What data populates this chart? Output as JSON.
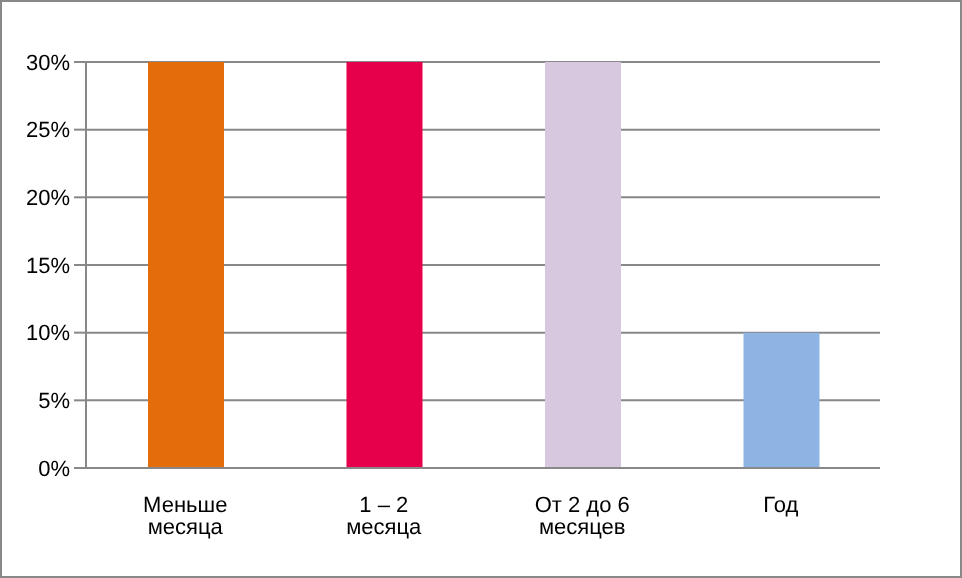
{
  "chart_data": {
    "type": "bar",
    "categories": [
      "Меньше месяца",
      "1 – 2 месяца",
      "От 2 до 6 месяцев",
      "Год"
    ],
    "values": [
      30,
      30,
      30,
      10
    ],
    "colors": [
      "#e46c0a",
      "#e6004c",
      "#d7c8df",
      "#8db4e2"
    ],
    "ylim": [
      0,
      30
    ],
    "yticks": [
      {
        "value": 0,
        "label": "0%"
      },
      {
        "value": 5,
        "label": "5%"
      },
      {
        "value": 10,
        "label": "10%"
      },
      {
        "value": 15,
        "label": "15%"
      },
      {
        "value": 20,
        "label": "20%"
      },
      {
        "value": 25,
        "label": "25%"
      },
      {
        "value": 30,
        "label": "30%"
      }
    ],
    "grid": "y",
    "legend": false
  }
}
